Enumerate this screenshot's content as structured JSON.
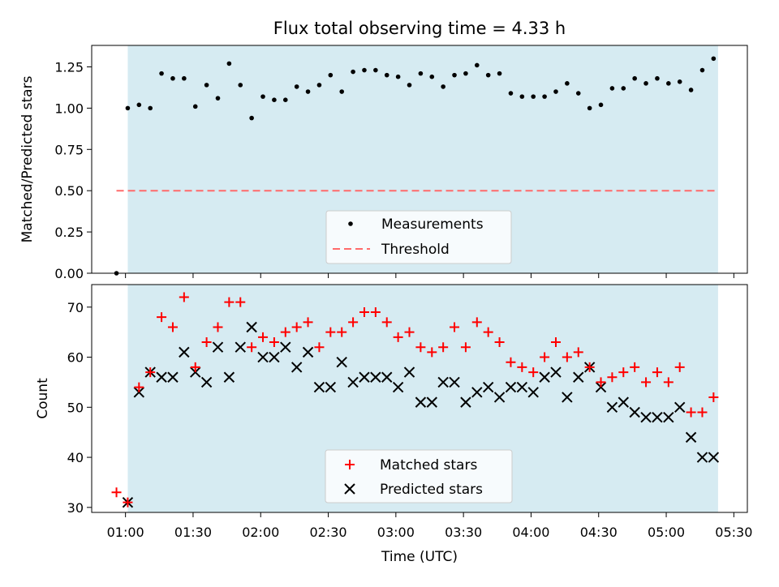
{
  "title": "Flux total observing time = 4.33 h",
  "colors": {
    "shade": "#add8e6",
    "threshold": "#ff6b6b",
    "matched": "#ff0000",
    "predicted": "#000000",
    "measurement": "#000000"
  },
  "chart_data": [
    {
      "type": "scatter",
      "panel": "top",
      "ylabel": "Matched/Predicted stars",
      "ylim": [
        0,
        1.38
      ],
      "yticks": [
        0,
        0.25,
        0.5,
        0.75,
        1.0,
        1.25
      ],
      "ytick_labels": [
        "0.00",
        "0.25",
        "0.50",
        "0.75",
        "1.00",
        "1.25"
      ],
      "shaded_span_minutes": [
        61,
        323
      ],
      "threshold": {
        "value": 0.5,
        "x_range_minutes": [
          56,
          323
        ]
      },
      "legend": {
        "position": "lower-center",
        "entries": [
          "Measurements",
          "Threshold"
        ]
      },
      "x_minutes": [
        56,
        61,
        66,
        71,
        76,
        81,
        86,
        91,
        96,
        101,
        106,
        111,
        116,
        121,
        126,
        131,
        136,
        141,
        146,
        151,
        156,
        161,
        166,
        171,
        176,
        181,
        186,
        191,
        196,
        201,
        206,
        211,
        216,
        221,
        226,
        231,
        236,
        241,
        246,
        251,
        256,
        261,
        266,
        271,
        276,
        281,
        286,
        291,
        296,
        301,
        306,
        311,
        316,
        321
      ],
      "series": [
        {
          "name": "Measurements",
          "values": [
            0.0,
            1.0,
            1.02,
            1.0,
            1.21,
            1.18,
            1.18,
            1.01,
            1.14,
            1.06,
            1.27,
            1.14,
            0.94,
            1.07,
            1.05,
            1.05,
            1.13,
            1.1,
            1.14,
            1.2,
            1.1,
            1.22,
            1.23,
            1.23,
            1.2,
            1.19,
            1.14,
            1.21,
            1.19,
            1.13,
            1.2,
            1.21,
            1.26,
            1.2,
            1.21,
            1.09,
            1.07,
            1.07,
            1.07,
            1.1,
            1.15,
            1.09,
            1.0,
            1.02,
            1.12,
            1.12,
            1.18,
            1.15,
            1.18,
            1.15,
            1.16,
            1.11,
            1.23,
            1.3
          ]
        }
      ]
    },
    {
      "type": "scatter",
      "panel": "bottom",
      "ylabel": "Count",
      "xlabel": "Time (UTC)",
      "ylim": [
        29,
        74.5
      ],
      "yticks": [
        30,
        40,
        50,
        60,
        70
      ],
      "ytick_labels": [
        "30",
        "40",
        "50",
        "60",
        "70"
      ],
      "xlim_minutes": [
        45,
        336
      ],
      "xticks_minutes": [
        60,
        90,
        120,
        150,
        180,
        210,
        240,
        270,
        300,
        330
      ],
      "xtick_labels": [
        "01:00",
        "01:30",
        "02:00",
        "02:30",
        "03:00",
        "03:30",
        "04:00",
        "04:30",
        "05:00",
        "05:30"
      ],
      "shaded_span_minutes": [
        61,
        323
      ],
      "legend": {
        "position": "lower-center",
        "entries": [
          "Matched stars",
          "Predicted stars"
        ]
      },
      "x_minutes": [
        56,
        61,
        66,
        71,
        76,
        81,
        86,
        91,
        96,
        101,
        106,
        111,
        116,
        121,
        126,
        131,
        136,
        141,
        146,
        151,
        156,
        161,
        166,
        171,
        176,
        181,
        186,
        191,
        196,
        201,
        206,
        211,
        216,
        221,
        226,
        231,
        236,
        241,
        246,
        251,
        256,
        261,
        266,
        271,
        276,
        281,
        286,
        291,
        296,
        301,
        306,
        311,
        316,
        321
      ],
      "series": [
        {
          "name": "Matched stars",
          "marker": "+",
          "values": [
            33,
            31,
            54,
            57,
            68,
            66,
            72,
            58,
            63,
            66,
            71,
            71,
            62,
            64,
            63,
            65,
            66,
            67,
            62,
            65,
            65,
            67,
            69,
            69,
            67,
            64,
            65,
            62,
            61,
            62,
            66,
            62,
            67,
            65,
            63,
            59,
            58,
            57,
            60,
            63,
            60,
            61,
            58,
            55,
            56,
            57,
            58,
            55,
            57,
            55,
            58,
            49,
            49,
            52
          ]
        },
        {
          "name": "Predicted stars",
          "marker": "x",
          "values": [
            null,
            31,
            53,
            57,
            56,
            56,
            61,
            57,
            55,
            62,
            56,
            62,
            66,
            60,
            60,
            62,
            58,
            61,
            54,
            54,
            59,
            55,
            56,
            56,
            56,
            54,
            57,
            51,
            51,
            55,
            55,
            51,
            53,
            54,
            52,
            54,
            54,
            53,
            56,
            57,
            52,
            56,
            58,
            54,
            50,
            51,
            49,
            48,
            48,
            48,
            50,
            44,
            40,
            40
          ]
        }
      ]
    }
  ]
}
